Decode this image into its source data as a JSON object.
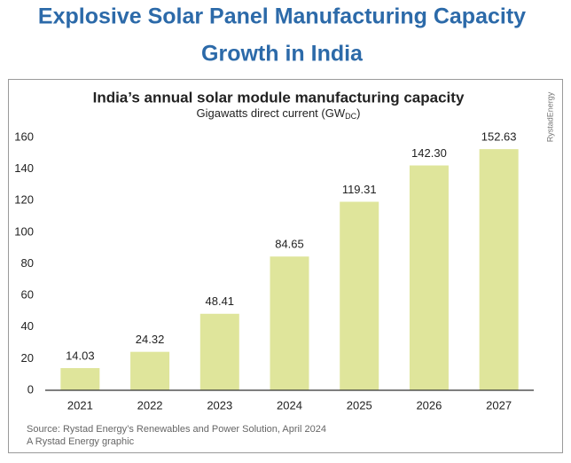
{
  "header": {
    "title_lines": [
      "Explosive Solar Panel Manufacturing Capacity",
      "Growth in India"
    ]
  },
  "chart_data": {
    "type": "bar",
    "title": "India’s annual solar module manufacturing capacity",
    "subtitle": "Gigawatts direct current (GW",
    "subtitle_subscript": "DC",
    "subtitle_end": ")",
    "brand": "RystadEnergy",
    "categories": [
      "2021",
      "2022",
      "2023",
      "2024",
      "2025",
      "2026",
      "2027"
    ],
    "values": [
      14.03,
      24.32,
      48.41,
      84.65,
      119.31,
      142.3,
      152.63
    ],
    "value_labels": [
      "14.03",
      "24.32",
      "48.41",
      "84.65",
      "119.31",
      "142.30",
      "152.63"
    ],
    "color": "#dfe59b",
    "ylim": [
      0,
      160
    ],
    "yticks": [
      0,
      20,
      40,
      60,
      80,
      100,
      120,
      140,
      160
    ],
    "grid": false,
    "source_lines": [
      "Source: Rystad Energy’s Renewables and Power Solution, April 2024",
      "A Rystad Energy graphic"
    ]
  }
}
